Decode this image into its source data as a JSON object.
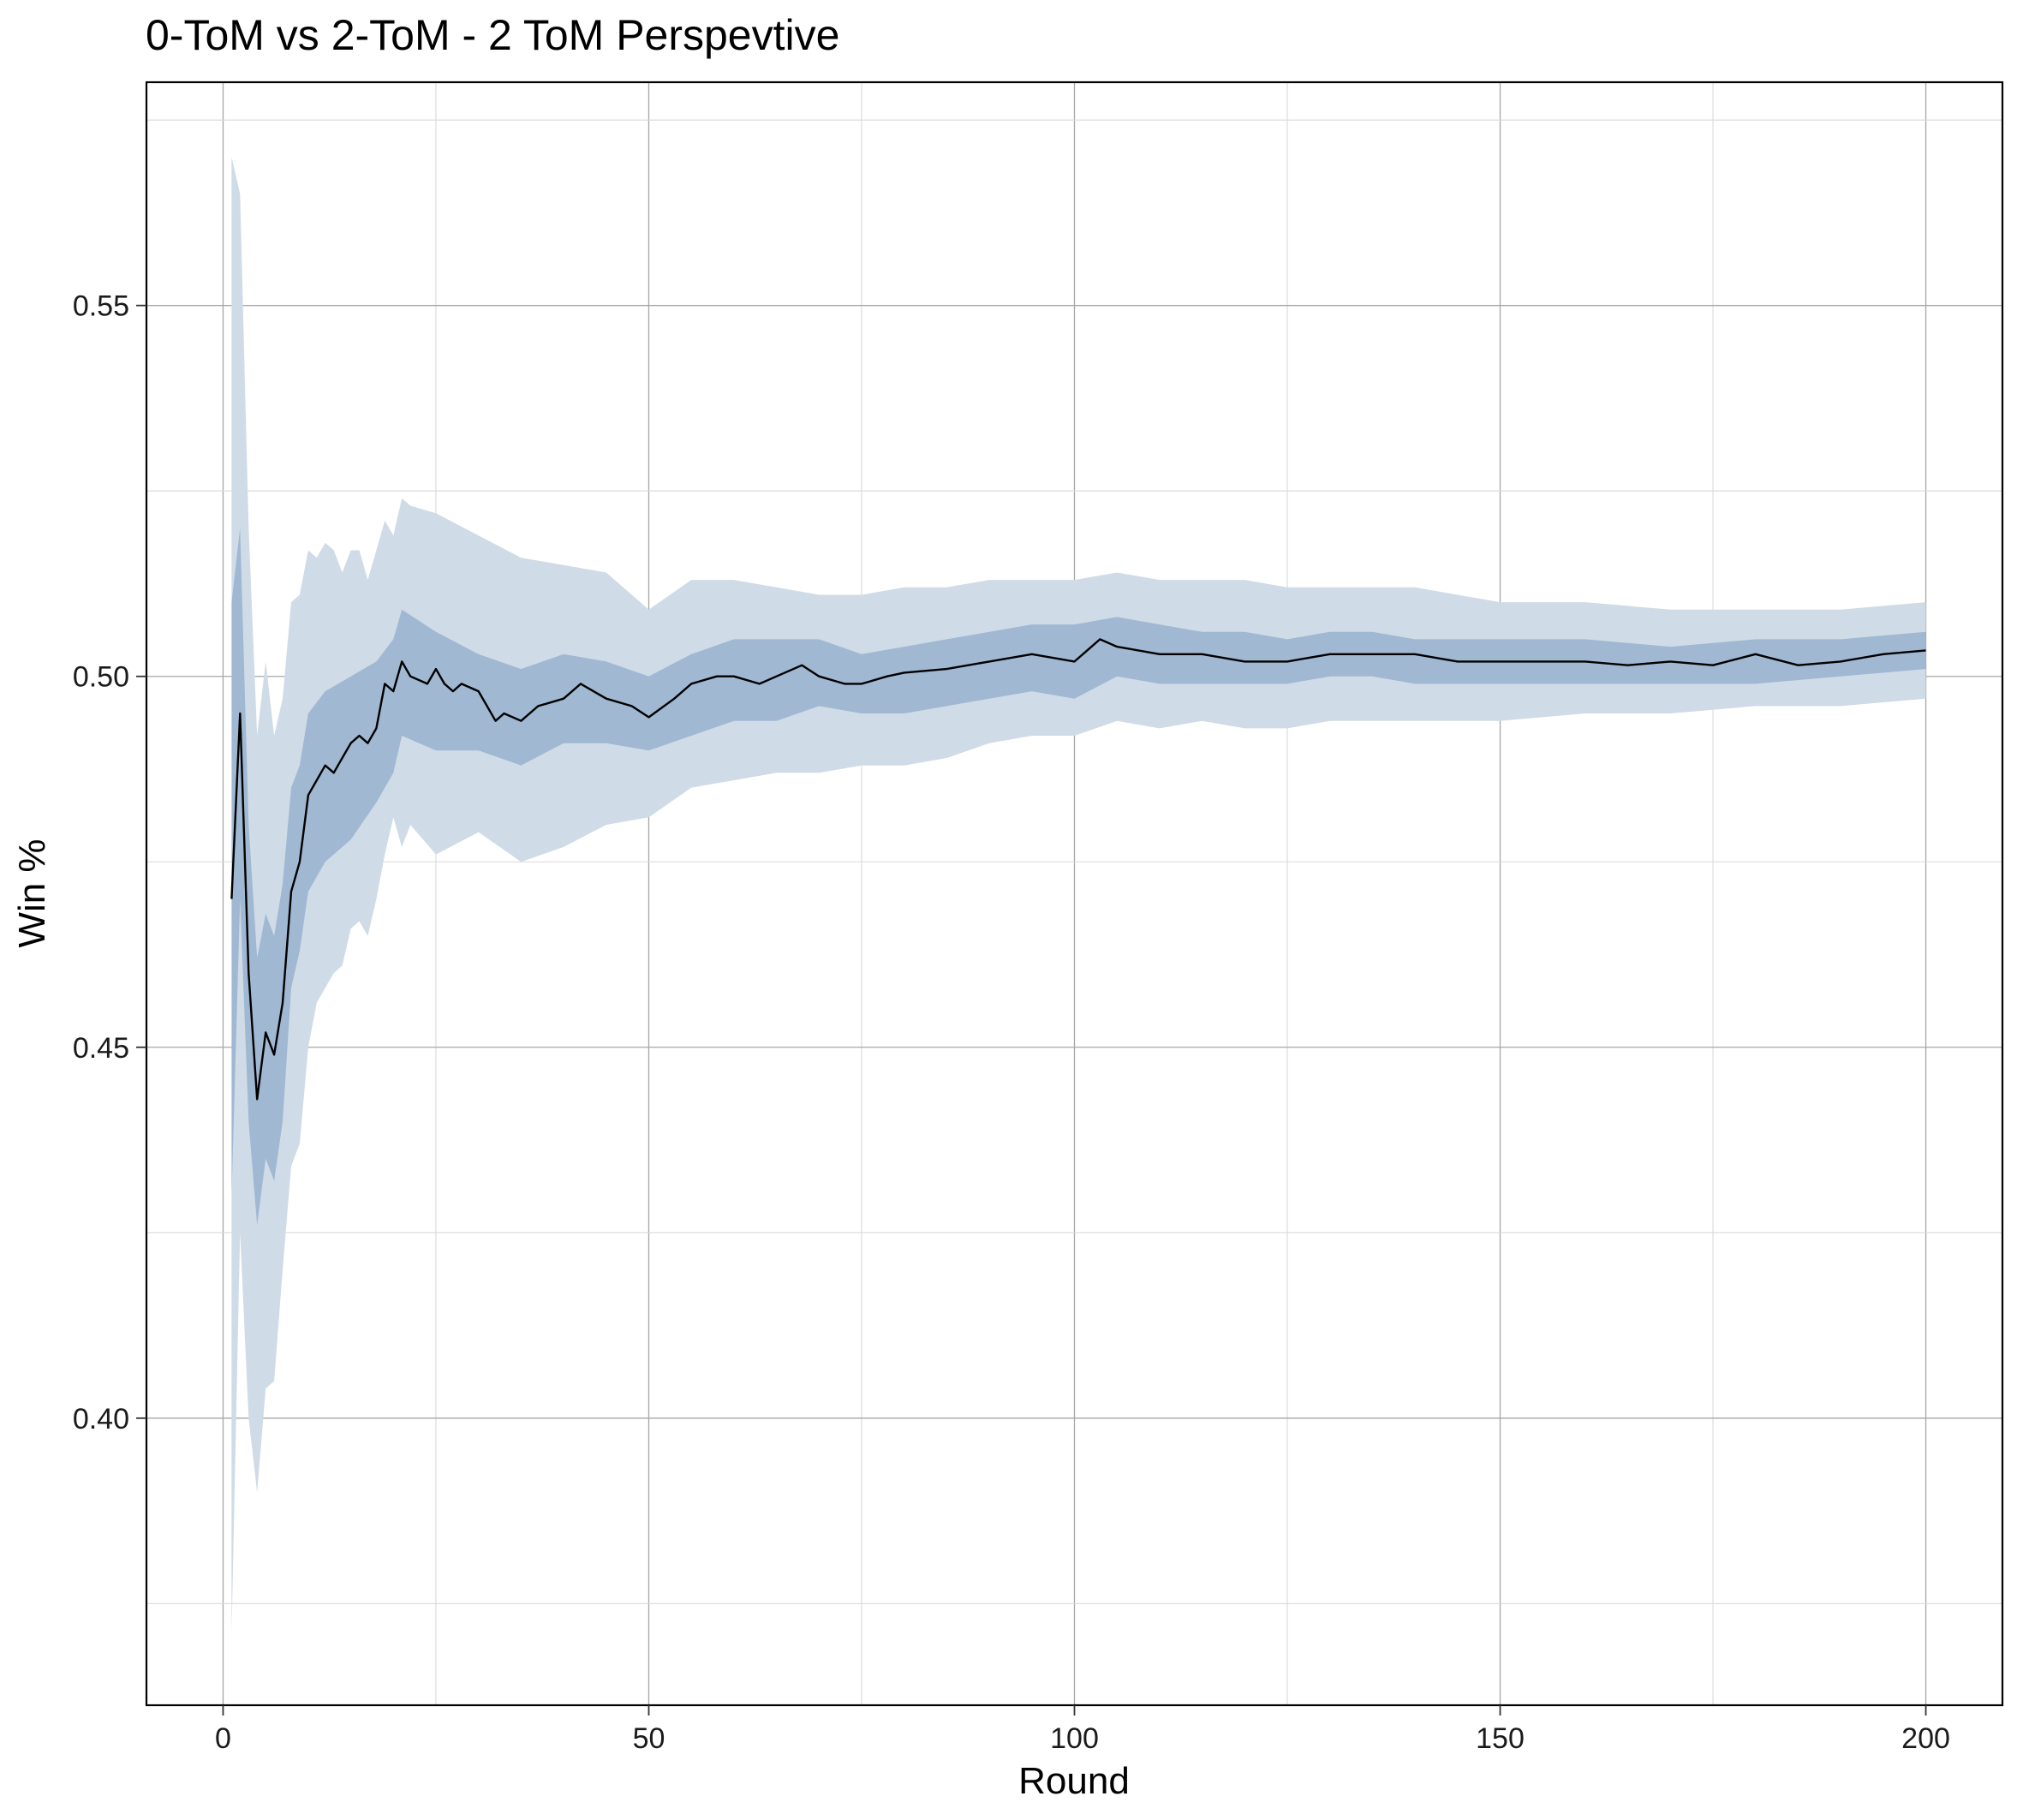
{
  "chart_data": {
    "type": "line",
    "title": "0-ToM vs 2-ToM - 2 ToM Perspevtive",
    "xlabel": "Round",
    "ylabel": "Win %",
    "xlim": [
      -9,
      209
    ],
    "ylim": [
      0.3613,
      0.5801
    ],
    "xticks": [
      0,
      50,
      100,
      150,
      200
    ],
    "xtick_labels": [
      "0",
      "50",
      "100",
      "150",
      "200"
    ],
    "yticks": [
      0.4,
      0.45,
      0.5,
      0.55
    ],
    "ytick_labels": [
      "0.40",
      "0.45",
      "0.50",
      "0.55"
    ],
    "grid": true,
    "legend": "none",
    "colors": {
      "outer_band": "#cfdbe7",
      "inner_band": "#a0b8d2",
      "line": "#000000"
    },
    "series": [
      {
        "role": "mean",
        "x": [
          1,
          2,
          3,
          4,
          5,
          6,
          7,
          8,
          9,
          10,
          11,
          12,
          13,
          14,
          15,
          16,
          17,
          18,
          19,
          20,
          21,
          22,
          24,
          25,
          26,
          27,
          28,
          30,
          32,
          33,
          35,
          37,
          40,
          42,
          45,
          48,
          50,
          53,
          55,
          58,
          60,
          63,
          65,
          68,
          70,
          73,
          75,
          78,
          80,
          85,
          90,
          95,
          100,
          103,
          105,
          110,
          115,
          120,
          125,
          130,
          135,
          140,
          145,
          150,
          155,
          160,
          165,
          170,
          175,
          180,
          185,
          190,
          195,
          200
        ],
        "values": [
          0.47,
          0.495,
          0.46,
          0.443,
          0.452,
          0.449,
          0.456,
          0.471,
          0.475,
          0.484,
          0.486,
          0.488,
          0.487,
          0.489,
          0.491,
          0.492,
          0.491,
          0.493,
          0.499,
          0.498,
          0.502,
          0.5,
          0.499,
          0.501,
          0.499,
          0.498,
          0.499,
          0.498,
          0.494,
          0.495,
          0.494,
          0.496,
          0.497,
          0.499,
          0.497,
          0.496,
          0.4945,
          0.497,
          0.499,
          0.5,
          0.5,
          0.499,
          0.5,
          0.5015,
          0.5,
          0.499,
          0.499,
          0.5,
          0.5005,
          0.501,
          0.502,
          0.503,
          0.502,
          0.505,
          0.504,
          0.503,
          0.503,
          0.502,
          0.502,
          0.503,
          0.503,
          0.503,
          0.502,
          0.502,
          0.502,
          0.502,
          0.5015,
          0.502,
          0.5015,
          0.503,
          0.5015,
          0.502,
          0.503,
          0.5035
        ]
      },
      {
        "role": "inner-band",
        "x": [
          1,
          2,
          3,
          4,
          5,
          6,
          7,
          8,
          9,
          10,
          12,
          15,
          18,
          20,
          21,
          25,
          30,
          35,
          40,
          45,
          50,
          55,
          60,
          65,
          70,
          75,
          80,
          85,
          90,
          95,
          100,
          105,
          110,
          115,
          120,
          125,
          130,
          135,
          140,
          145,
          150,
          160,
          170,
          180,
          190,
          200
        ],
        "lower": [
          0.43,
          0.47,
          0.44,
          0.426,
          0.435,
          0.432,
          0.44,
          0.458,
          0.463,
          0.471,
          0.475,
          0.478,
          0.483,
          0.487,
          0.492,
          0.49,
          0.49,
          0.488,
          0.491,
          0.491,
          0.49,
          0.492,
          0.494,
          0.494,
          0.496,
          0.495,
          0.495,
          0.496,
          0.497,
          0.498,
          0.497,
          0.5,
          0.499,
          0.499,
          0.499,
          0.499,
          0.5,
          0.5,
          0.499,
          0.499,
          0.499,
          0.499,
          0.499,
          0.499,
          0.5,
          0.501
        ],
        "upper": [
          0.51,
          0.52,
          0.48,
          0.462,
          0.468,
          0.465,
          0.472,
          0.485,
          0.488,
          0.495,
          0.498,
          0.5,
          0.502,
          0.505,
          0.509,
          0.506,
          0.503,
          0.501,
          0.503,
          0.502,
          0.5,
          0.503,
          0.505,
          0.505,
          0.505,
          0.503,
          0.504,
          0.505,
          0.506,
          0.507,
          0.507,
          0.508,
          0.507,
          0.506,
          0.506,
          0.505,
          0.506,
          0.506,
          0.505,
          0.505,
          0.505,
          0.505,
          0.504,
          0.505,
          0.505,
          0.506
        ]
      },
      {
        "role": "outer-band",
        "x": [
          1,
          2,
          3,
          4,
          5,
          6,
          7,
          8,
          9,
          10,
          11,
          12,
          13,
          14,
          15,
          16,
          17,
          18,
          19,
          20,
          21,
          22,
          25,
          30,
          35,
          40,
          45,
          50,
          55,
          60,
          65,
          70,
          75,
          80,
          85,
          90,
          95,
          100,
          105,
          110,
          115,
          120,
          125,
          130,
          135,
          140,
          145,
          150,
          160,
          170,
          180,
          190,
          200
        ],
        "lower": [
          0.371,
          0.425,
          0.4,
          0.39,
          0.404,
          0.405,
          0.42,
          0.434,
          0.437,
          0.45,
          0.456,
          0.458,
          0.46,
          0.461,
          0.466,
          0.467,
          0.465,
          0.47,
          0.476,
          0.481,
          0.477,
          0.48,
          0.476,
          0.479,
          0.475,
          0.477,
          0.48,
          0.481,
          0.485,
          0.486,
          0.487,
          0.487,
          0.488,
          0.488,
          0.489,
          0.491,
          0.492,
          0.492,
          0.494,
          0.493,
          0.494,
          0.493,
          0.493,
          0.494,
          0.494,
          0.494,
          0.494,
          0.494,
          0.495,
          0.495,
          0.496,
          0.496,
          0.497
        ],
        "upper": [
          0.57,
          0.565,
          0.52,
          0.492,
          0.502,
          0.492,
          0.497,
          0.51,
          0.511,
          0.517,
          0.516,
          0.518,
          0.517,
          0.514,
          0.517,
          0.517,
          0.513,
          0.517,
          0.521,
          0.519,
          0.524,
          0.523,
          0.522,
          0.519,
          0.516,
          0.515,
          0.514,
          0.509,
          0.513,
          0.513,
          0.512,
          0.511,
          0.511,
          0.512,
          0.512,
          0.513,
          0.513,
          0.513,
          0.514,
          0.513,
          0.513,
          0.513,
          0.512,
          0.512,
          0.512,
          0.512,
          0.511,
          0.51,
          0.51,
          0.509,
          0.509,
          0.509,
          0.51
        ]
      }
    ]
  }
}
